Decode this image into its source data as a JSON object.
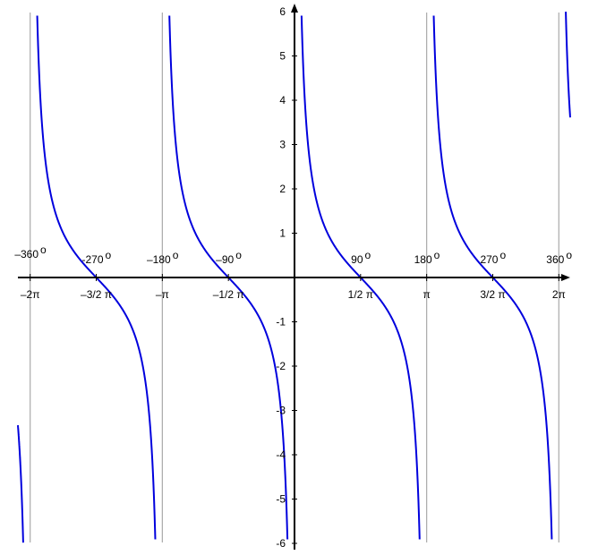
{
  "chart_data": {
    "type": "line",
    "function": "cot(x)",
    "xlim_radians": [
      -6.75,
      6.9
    ],
    "ylim": [
      -6,
      6
    ],
    "grid": false,
    "colors": {
      "curve": "#0000dd",
      "asymptote": "#aaaaaa",
      "axis": "#000000"
    },
    "asymptotes_radians": [
      -6.2832,
      -3.1416,
      0,
      3.1416,
      6.2832
    ],
    "y_ticks": [
      {
        "value": 6,
        "label": "6"
      },
      {
        "value": 5,
        "label": "5"
      },
      {
        "value": 4,
        "label": "4"
      },
      {
        "value": 3,
        "label": "3"
      },
      {
        "value": 2,
        "label": "2"
      },
      {
        "value": 1,
        "label": "1"
      },
      {
        "value": -1,
        "label": "-1"
      },
      {
        "value": -2,
        "label": "-2"
      },
      {
        "value": -3,
        "label": "-3"
      },
      {
        "value": -4,
        "label": "-4"
      },
      {
        "value": -5,
        "label": "-5"
      },
      {
        "value": -6,
        "label": "-6"
      }
    ],
    "x_ticks": [
      {
        "value": -6.2832,
        "radian_label": "–2π",
        "degree_label": "–360"
      },
      {
        "value": -4.7124,
        "radian_label": "–3/2 π",
        "degree_label": "-270"
      },
      {
        "value": -3.1416,
        "radian_label": "–π",
        "degree_label": "–180"
      },
      {
        "value": -1.5708,
        "radian_label": "–1/2 π",
        "degree_label": "–90"
      },
      {
        "value": 1.5708,
        "radian_label": "1/2 π",
        "degree_label": "90"
      },
      {
        "value": 3.1416,
        "radian_label": "π",
        "degree_label": "180"
      },
      {
        "value": 4.7124,
        "radian_label": "3/2 π",
        "degree_label": "270"
      },
      {
        "value": 6.2832,
        "radian_label": "2π",
        "degree_label": "360"
      }
    ],
    "degree_superscript": "o"
  }
}
